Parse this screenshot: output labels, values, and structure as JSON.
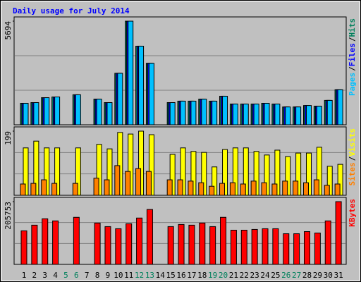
{
  "chart_data": [
    {
      "type": "bar",
      "title": "Daily usage for July 2014",
      "ylim": [
        0,
        5694
      ],
      "yticks": [
        5694
      ],
      "legend_separator": "/",
      "series": [
        {
          "name": "Hits",
          "color": "#00805c",
          "values": [
            1180,
            1220,
            1490,
            1530,
            null,
            1650,
            null,
            1410,
            1220,
            2830,
            5694,
            4320,
            3380,
            null,
            1220,
            1300,
            1300,
            1410,
            1300,
            1570,
            1140,
            1140,
            1140,
            1180,
            1140,
            980,
            980,
            1060,
            1020,
            1340,
            1930
          ]
        },
        {
          "name": "Files",
          "color": "#0000ff",
          "values": [
            1180,
            1220,
            1490,
            1530,
            null,
            1650,
            null,
            1410,
            1220,
            2830,
            5694,
            4320,
            3380,
            null,
            1220,
            1300,
            1300,
            1410,
            1300,
            1570,
            1140,
            1140,
            1140,
            1180,
            1140,
            980,
            980,
            1060,
            1020,
            1340,
            1930
          ]
        },
        {
          "name": "Pages",
          "color": "#00c0ff",
          "values": [
            1180,
            1220,
            1490,
            1530,
            null,
            1650,
            null,
            1410,
            1220,
            2830,
            5694,
            4320,
            3380,
            null,
            1220,
            1300,
            1300,
            1410,
            1300,
            1570,
            1140,
            1140,
            1140,
            1180,
            1140,
            980,
            980,
            1060,
            1020,
            1340,
            1930
          ]
        }
      ]
    },
    {
      "type": "bar",
      "ylim": [
        0,
        199
      ],
      "yticks": [
        199
      ],
      "legend_separator": "/",
      "series": [
        {
          "name": "Visits",
          "color": "#ffff00",
          "values": [
            147,
            168,
            147,
            147,
            null,
            147,
            null,
            158,
            144,
            195,
            190,
            199,
            188,
            null,
            127,
            147,
            136,
            133,
            88,
            142,
            147,
            147,
            136,
            125,
            140,
            120,
            131,
            131,
            149,
            90,
            96
          ]
        },
        {
          "name": "Sites",
          "color": "#ff8000",
          "values": [
            35,
            37,
            48,
            37,
            null,
            37,
            null,
            53,
            48,
            92,
            74,
            83,
            74,
            null,
            48,
            48,
            44,
            39,
            28,
            37,
            39,
            35,
            44,
            39,
            35,
            44,
            44,
            39,
            48,
            31,
            35
          ]
        }
      ]
    },
    {
      "type": "bar",
      "ylim": [
        0,
        205753
      ],
      "yticks": [
        205753
      ],
      "categories": [
        "1",
        "2",
        "3",
        "4",
        "5",
        "6",
        "7",
        "8",
        "9",
        "10",
        "11",
        "12",
        "13",
        "14",
        "15",
        "16",
        "17",
        "18",
        "19",
        "20",
        "21",
        "22",
        "23",
        "24",
        "25",
        "26",
        "27",
        "28",
        "29",
        "30",
        "31"
      ],
      "category_colors": [
        "#000000",
        "#000000",
        "#000000",
        "#000000",
        "#00805c",
        "#00805c",
        "#000000",
        "#000000",
        "#000000",
        "#000000",
        "#000000",
        "#00805c",
        "#00805c",
        "#000000",
        "#000000",
        "#000000",
        "#000000",
        "#000000",
        "#00805c",
        "#00805c",
        "#000000",
        "#000000",
        "#000000",
        "#000000",
        "#000000",
        "#00805c",
        "#00805c",
        "#000000",
        "#000000",
        "#000000",
        "#000000"
      ],
      "series": [
        {
          "name": "KBytes",
          "color": "#ff0000",
          "values": [
            110000,
            128600,
            149600,
            142600,
            null,
            154300,
            null,
            135600,
            123900,
            116900,
            133300,
            152000,
            180000,
            null,
            123900,
            130900,
            128600,
            135600,
            123900,
            154300,
            112200,
            112200,
            114600,
            116900,
            116900,
            100500,
            100500,
            107500,
            102900,
            142600,
            205753
          ]
        }
      ]
    }
  ]
}
